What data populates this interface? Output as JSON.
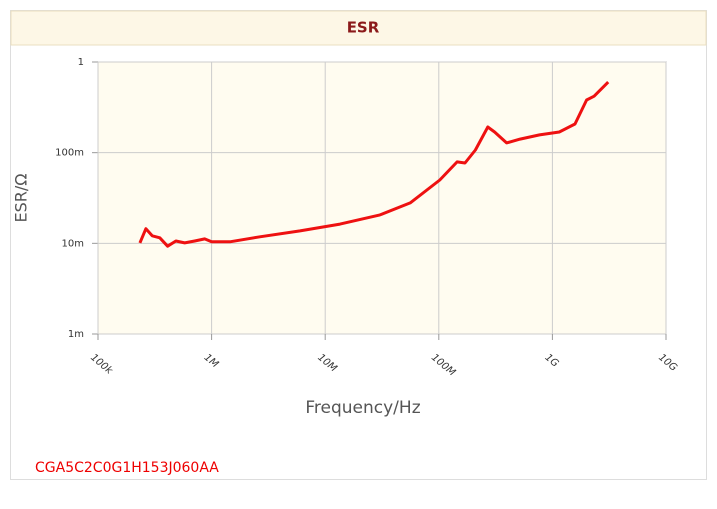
{
  "chart_data": {
    "type": "line",
    "title": "ESR",
    "x_label": "Frequency/Hz",
    "y_label": "ESR/Ω",
    "caption": "CGA5C2C0G1H153J060AA",
    "xscale": "log",
    "yscale": "log",
    "grid": true,
    "xlim": [
      100000,
      10000000000
    ],
    "ylim": [
      0.001,
      1
    ],
    "xticks": [
      {
        "value": 100000,
        "label": "100k"
      },
      {
        "value": 1000000,
        "label": "1M"
      },
      {
        "value": 10000000,
        "label": "10M"
      },
      {
        "value": 100000000,
        "label": "100M"
      },
      {
        "value": 1000000000,
        "label": "1G"
      },
      {
        "value": 10000000000,
        "label": "10G"
      }
    ],
    "yticks": [
      {
        "value": 0.001,
        "label": "1m"
      },
      {
        "value": 0.01,
        "label": "10m"
      },
      {
        "value": 0.1,
        "label": "100m"
      },
      1
    ],
    "series": [
      {
        "name": "ESR",
        "color": "#ee1111",
        "x": [
          234000,
          264000,
          300000,
          350000,
          410000,
          485000,
          580000,
          710000,
          870000,
          1000000,
          1450000,
          2660000,
          6000000,
          13500000,
          30000000,
          56000000,
          102000000,
          145000000,
          170000000,
          210000000,
          270000000,
          310000000,
          395000000,
          520000000,
          770000000,
          1150000000,
          1580000000,
          2000000000,
          2330000000,
          3100000000
        ],
        "values": [
          0.0101,
          0.0145,
          0.0121,
          0.0115,
          0.0093,
          0.0106,
          0.0101,
          0.0106,
          0.0112,
          0.0104,
          0.0104,
          0.0118,
          0.0137,
          0.0163,
          0.0205,
          0.0279,
          0.05,
          0.079,
          0.077,
          0.107,
          0.192,
          0.169,
          0.128,
          0.141,
          0.157,
          0.169,
          0.207,
          0.381,
          0.42,
          0.6
        ]
      }
    ]
  }
}
